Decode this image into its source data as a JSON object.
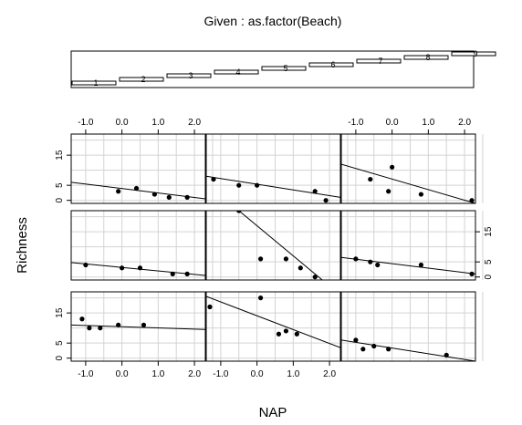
{
  "given_label": "Given : as.factor(Beach)",
  "given_levels": [
    "1",
    "2",
    "3",
    "4",
    "5",
    "6",
    "7",
    "8",
    "9"
  ],
  "chart_data": {
    "type": "scatter",
    "title": "Given : as.factor(Beach)",
    "xlabel": "NAP",
    "ylabel": "Richness",
    "xlim": [
      -1.4,
      2.3
    ],
    "ylim": [
      -1,
      22
    ],
    "xticks": [
      "-1.0",
      "0.0",
      "1.0",
      "2.0"
    ],
    "xtick_values": [
      -1.0,
      0.0,
      1.0,
      2.0
    ],
    "yticks": [
      "0",
      "5",
      "15"
    ],
    "ytick_values": [
      0,
      5,
      15
    ],
    "grid": true,
    "panels": [
      {
        "beach": "1",
        "points": [
          [
            -1.1,
            13
          ],
          [
            -0.9,
            10
          ],
          [
            -0.6,
            10
          ],
          [
            -0.1,
            11
          ],
          [
            0.6,
            11
          ]
        ],
        "line": [
          [
            -1.4,
            11.0
          ],
          [
            2.3,
            9.5
          ]
        ]
      },
      {
        "beach": "2",
        "points": [
          [
            -1.3,
            17
          ],
          [
            0.1,
            20
          ],
          [
            0.6,
            8
          ],
          [
            0.8,
            9
          ],
          [
            1.1,
            8
          ]
        ],
        "line": [
          [
            -1.4,
            20.5
          ],
          [
            2.3,
            3.5
          ]
        ]
      },
      {
        "beach": "3",
        "points": [
          [
            -1.0,
            6
          ],
          [
            -0.8,
            3
          ],
          [
            -0.5,
            4
          ],
          [
            -0.1,
            3
          ],
          [
            1.5,
            1
          ]
        ],
        "line": [
          [
            -1.4,
            6.0
          ],
          [
            2.3,
            -1.0
          ]
        ]
      },
      {
        "beach": "4",
        "points": [
          [
            -1.0,
            4
          ],
          [
            0.0,
            3
          ],
          [
            0.5,
            3
          ],
          [
            1.4,
            1
          ],
          [
            1.8,
            1
          ]
        ],
        "line": [
          [
            -1.4,
            4.8
          ],
          [
            2.3,
            0.5
          ]
        ]
      },
      {
        "beach": "5",
        "points": [
          [
            -0.5,
            22
          ],
          [
            0.1,
            6
          ],
          [
            0.8,
            6
          ],
          [
            1.2,
            3
          ],
          [
            1.6,
            0
          ]
        ],
        "line": [
          [
            -1.4,
            31.0
          ],
          [
            2.3,
            -6.0
          ]
        ]
      },
      {
        "beach": "6",
        "points": [
          [
            -1.0,
            6
          ],
          [
            -0.6,
            5
          ],
          [
            -0.4,
            4
          ],
          [
            0.8,
            4
          ],
          [
            2.2,
            1
          ]
        ],
        "line": [
          [
            -1.4,
            6.5
          ],
          [
            2.3,
            1.0
          ]
        ]
      },
      {
        "beach": "7",
        "points": [
          [
            -0.1,
            3
          ],
          [
            0.4,
            4
          ],
          [
            0.9,
            2
          ],
          [
            1.3,
            1
          ],
          [
            1.8,
            1
          ]
        ],
        "line": [
          [
            -1.4,
            6.0
          ],
          [
            2.3,
            0.5
          ]
        ]
      },
      {
        "beach": "8",
        "points": [
          [
            -1.2,
            7
          ],
          [
            -0.5,
            5
          ],
          [
            0.0,
            5
          ],
          [
            1.6,
            3
          ],
          [
            1.9,
            0
          ]
        ],
        "line": [
          [
            -1.4,
            8.0
          ],
          [
            2.3,
            1.0
          ]
        ]
      },
      {
        "beach": "9",
        "points": [
          [
            -0.6,
            7
          ],
          [
            -0.1,
            3
          ],
          [
            0.0,
            11
          ],
          [
            0.8,
            2
          ],
          [
            2.2,
            0
          ]
        ],
        "line": [
          [
            -1.4,
            12.0
          ],
          [
            2.3,
            -1.0
          ]
        ]
      }
    ]
  }
}
